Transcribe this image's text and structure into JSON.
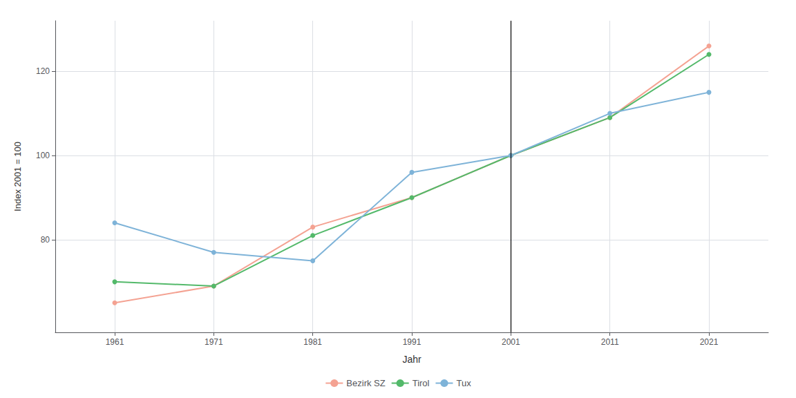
{
  "chart_data": {
    "type": "line",
    "xlabel": "Jahr",
    "ylabel": "Index 2001 = 100",
    "x": [
      1961,
      1971,
      1981,
      1991,
      2001,
      2011,
      2021
    ],
    "series": [
      {
        "name": "Bezirk SZ",
        "color": "#F4A292",
        "values": [
          65,
          69,
          83,
          90,
          100,
          109,
          126
        ]
      },
      {
        "name": "Tirol",
        "color": "#53B96A",
        "values": [
          70,
          69,
          81,
          90,
          100,
          109,
          124
        ]
      },
      {
        "name": "Tux",
        "color": "#7EB3D8",
        "values": [
          84,
          77,
          75,
          96,
          100,
          110,
          115
        ]
      }
    ],
    "vline_x": 2001,
    "xlim": [
      1955,
      2027
    ],
    "xticks": [
      1961,
      1971,
      1981,
      1991,
      2001,
      2011,
      2021
    ],
    "ylim": [
      58,
      132
    ],
    "yticks": [
      80,
      100,
      120
    ],
    "grid": true,
    "legend": "bottom",
    "marker": "circle"
  }
}
